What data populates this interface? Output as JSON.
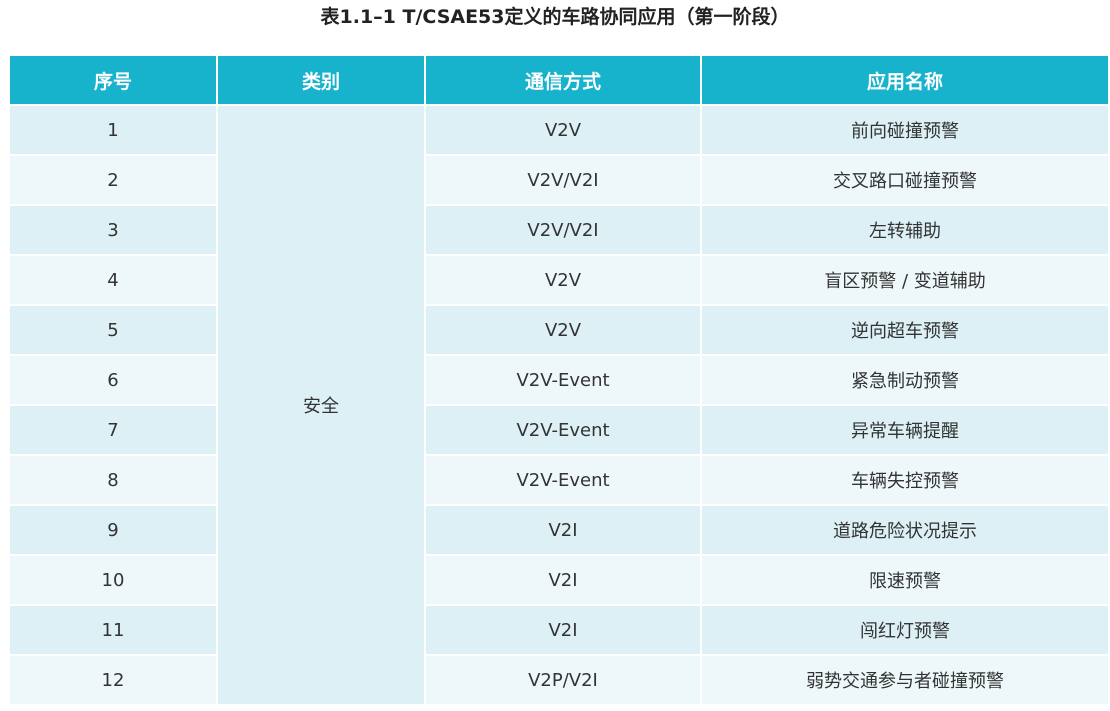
{
  "header": {
    "title": "表1.1–1 T/CSAE53定义的车路协同应用（第一阶段）"
  },
  "table": {
    "columns": [
      "序号",
      "类别",
      "通信方式",
      "应用名称"
    ],
    "category": "安全",
    "rows": [
      [
        1,
        "V2V",
        "前向碰撞预警"
      ],
      [
        2,
        "V2V/V2I",
        "交叉路口碰撞预警"
      ],
      [
        3,
        "V2V/V2I",
        "左转辅助"
      ],
      [
        4,
        "V2V",
        "盲区预警 / 变道辅助"
      ],
      [
        5,
        "V2V",
        "逆向超车预警"
      ],
      [
        6,
        "V2V-Event",
        "紧急制动预警"
      ],
      [
        7,
        "V2V-Event",
        "异常车辆提醒"
      ],
      [
        8,
        "V2V-Event",
        "车辆失控预警"
      ],
      [
        9,
        "V2I",
        "道路危险状况提示"
      ],
      [
        10,
        "V2I",
        "限速预警"
      ],
      [
        11,
        "V2I",
        "闯红灯预警"
      ],
      [
        12,
        "V2P/V2I",
        "弱势交通参与者碰撞预警"
      ]
    ]
  }
}
